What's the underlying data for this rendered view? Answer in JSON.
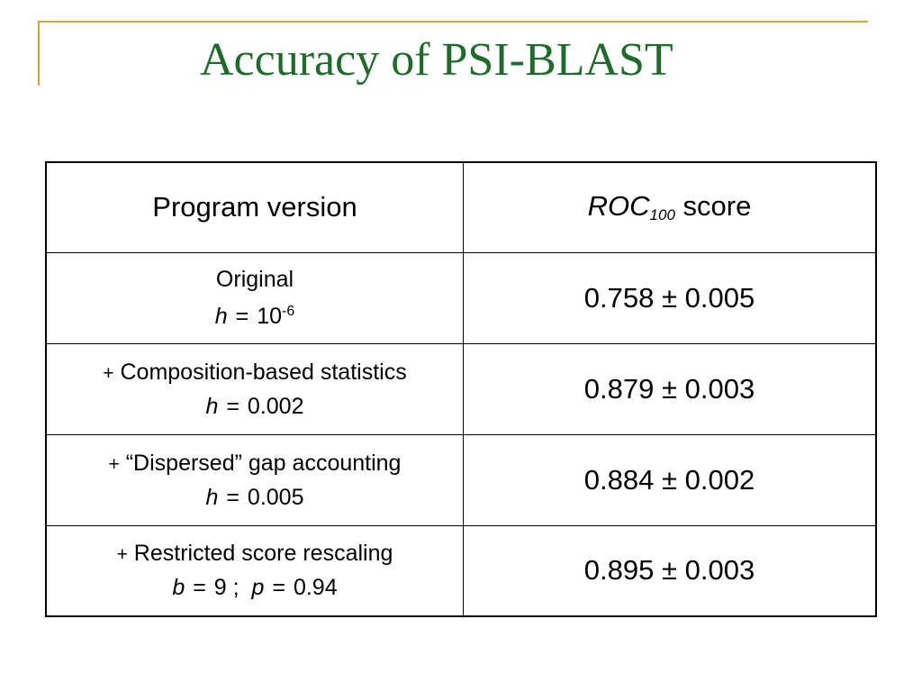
{
  "slide": {
    "title": "Accuracy of PSI-BLAST"
  },
  "table": {
    "header": {
      "program_version": "Program version",
      "roc_label": "ROC",
      "roc_subscript": "100",
      "score_word": "score"
    },
    "rows": [
      {
        "prefix": "",
        "name": "Original",
        "param1_var": "h",
        "param1_value": "10",
        "param1_exponent": "-6",
        "score": "0.758 ± 0.005"
      },
      {
        "prefix": "+",
        "name": "Composition-based statistics",
        "param1_var": "h",
        "param1_value": "0.002",
        "score": "0.879 ± 0.003"
      },
      {
        "prefix": "+",
        "name": "“Dispersed” gap accounting",
        "param1_var": "h",
        "param1_value": "0.005",
        "score": "0.884 ± 0.002"
      },
      {
        "prefix": "+",
        "name": "Restricted score rescaling",
        "param1_var": "b",
        "param1_value": "9",
        "separator": ";",
        "param2_var": "p",
        "param2_value": "0.94",
        "score": "0.895 ± 0.003"
      }
    ]
  },
  "colors": {
    "title": "#1f6b2a",
    "frame": "#c8a93c"
  }
}
